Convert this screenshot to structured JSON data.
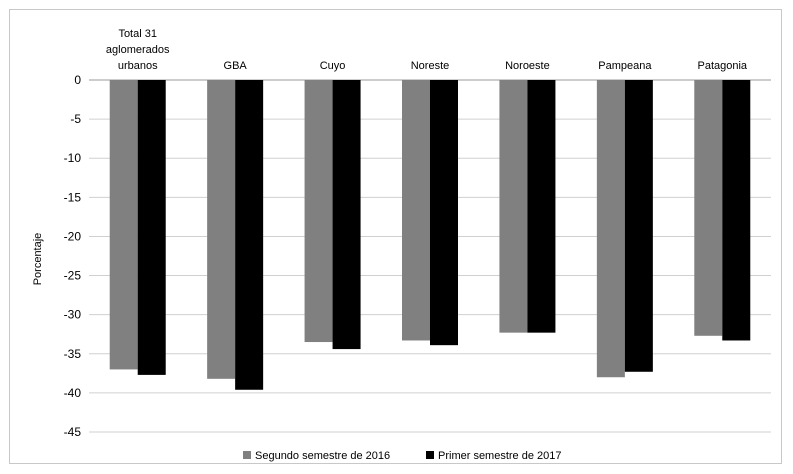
{
  "chart_data": {
    "type": "bar",
    "title": "",
    "xlabel": "",
    "ylabel": "Porcentaje",
    "ylim": [
      -45,
      0
    ],
    "yticks": [
      0,
      -5,
      -10,
      -15,
      -20,
      -25,
      -30,
      -35,
      -40,
      -45
    ],
    "grid": true,
    "legend_position": "bottom",
    "categories": [
      [
        "Total 31",
        "aglomerados",
        "urbanos"
      ],
      [
        "GBA"
      ],
      [
        "Cuyo"
      ],
      [
        "Noreste"
      ],
      [
        "Noroeste"
      ],
      [
        "Pampeana"
      ],
      [
        "Patagonia"
      ]
    ],
    "series": [
      {
        "name": "Segundo semestre de 2016",
        "color": "#808080",
        "values": [
          -37.0,
          -38.2,
          -33.5,
          -33.3,
          -32.3,
          -38.0,
          -32.7
        ]
      },
      {
        "name": "Primer semestre de 2017",
        "color": "#000000",
        "values": [
          -37.7,
          -39.6,
          -34.4,
          -33.9,
          -32.3,
          -37.3,
          -33.3
        ]
      }
    ]
  }
}
